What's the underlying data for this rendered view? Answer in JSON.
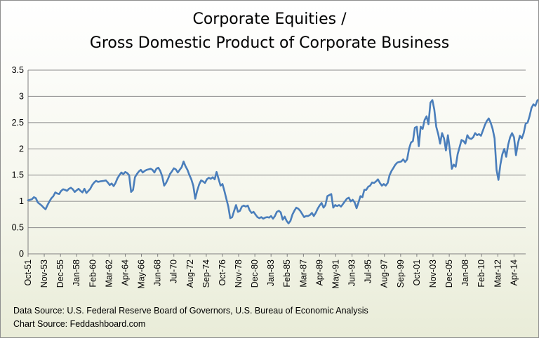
{
  "chart_data": {
    "type": "line",
    "title_line1": "Corporate Equities /",
    "title_line2": "Gross Domestic Product of Corporate Business",
    "xlabel": "",
    "ylabel": "",
    "ylim": [
      0,
      3.5
    ],
    "y_ticks": [
      "0",
      "0.5",
      "1",
      "1.5",
      "2",
      "2.5",
      "3",
      "3.5"
    ],
    "x_tick_labels": [
      "Oct-51",
      "Nov-53",
      "Dec-55",
      "Jan-58",
      "Feb-60",
      "Mar-62",
      "Apr-64",
      "May-66",
      "Jun-68",
      "Jul-70",
      "Aug-72",
      "Sep-74",
      "Oct-76",
      "Nov-78",
      "Dec-80",
      "Jan-83",
      "Feb-85",
      "Mar-87",
      "Apr-89",
      "May-91",
      "Jun-93",
      "Jul-95",
      "Aug-97",
      "Sep-99",
      "Oct-01",
      "Nov-03",
      "Dec-05",
      "Jan-08",
      "Feb-10",
      "Mar-12",
      "Apr-14"
    ],
    "x_tick_years": [
      1951.75,
      1953.83,
      1955.92,
      1958.0,
      1960.08,
      1962.17,
      1964.25,
      1966.33,
      1968.42,
      1970.5,
      1972.58,
      1974.67,
      1976.75,
      1978.83,
      1980.92,
      1983.0,
      1985.08,
      1987.17,
      1989.25,
      1991.33,
      1993.42,
      1995.5,
      1997.58,
      1999.67,
      2001.75,
      2003.83,
      2005.92,
      2008.0,
      2010.08,
      2012.17,
      2014.25
    ],
    "x_range": [
      1951.75,
      2015.75
    ],
    "grid": "horizontal",
    "legend": "none",
    "series": [
      {
        "name": "Corporate Equities / Gross Domestic Product of Corporate Business",
        "color": "#4a7ebb",
        "points": [
          [
            1951.75,
            1.02
          ],
          [
            1952.25,
            1.04
          ],
          [
            1952.5,
            1.08
          ],
          [
            1952.75,
            1.06
          ],
          [
            1953.0,
            0.98
          ],
          [
            1953.25,
            0.95
          ],
          [
            1953.5,
            0.92
          ],
          [
            1953.75,
            0.88
          ],
          [
            1954.0,
            0.85
          ],
          [
            1954.25,
            0.93
          ],
          [
            1954.5,
            1.0
          ],
          [
            1954.75,
            1.06
          ],
          [
            1955.0,
            1.1
          ],
          [
            1955.25,
            1.17
          ],
          [
            1955.5,
            1.15
          ],
          [
            1955.75,
            1.14
          ],
          [
            1956.0,
            1.2
          ],
          [
            1956.25,
            1.23
          ],
          [
            1956.5,
            1.22
          ],
          [
            1956.75,
            1.2
          ],
          [
            1957.0,
            1.24
          ],
          [
            1957.25,
            1.26
          ],
          [
            1957.5,
            1.23
          ],
          [
            1957.75,
            1.18
          ],
          [
            1958.0,
            1.21
          ],
          [
            1958.25,
            1.24
          ],
          [
            1958.5,
            1.2
          ],
          [
            1958.75,
            1.17
          ],
          [
            1959.0,
            1.24
          ],
          [
            1959.25,
            1.16
          ],
          [
            1959.5,
            1.2
          ],
          [
            1959.75,
            1.24
          ],
          [
            1960.0,
            1.31
          ],
          [
            1960.25,
            1.36
          ],
          [
            1960.5,
            1.39
          ],
          [
            1960.75,
            1.37
          ],
          [
            1961.0,
            1.38
          ],
          [
            1961.5,
            1.39
          ],
          [
            1961.75,
            1.4
          ],
          [
            1962.0,
            1.36
          ],
          [
            1962.25,
            1.31
          ],
          [
            1962.5,
            1.34
          ],
          [
            1962.75,
            1.29
          ],
          [
            1963.0,
            1.35
          ],
          [
            1963.25,
            1.44
          ],
          [
            1963.5,
            1.5
          ],
          [
            1963.75,
            1.55
          ],
          [
            1964.0,
            1.52
          ],
          [
            1964.25,
            1.56
          ],
          [
            1964.5,
            1.54
          ],
          [
            1964.75,
            1.5
          ],
          [
            1965.0,
            1.18
          ],
          [
            1965.25,
            1.22
          ],
          [
            1965.5,
            1.46
          ],
          [
            1965.75,
            1.52
          ],
          [
            1966.0,
            1.57
          ],
          [
            1966.25,
            1.6
          ],
          [
            1966.5,
            1.55
          ],
          [
            1966.75,
            1.58
          ],
          [
            1967.0,
            1.6
          ],
          [
            1967.5,
            1.62
          ],
          [
            1967.75,
            1.6
          ],
          [
            1968.0,
            1.55
          ],
          [
            1968.25,
            1.62
          ],
          [
            1968.5,
            1.64
          ],
          [
            1968.75,
            1.58
          ],
          [
            1969.0,
            1.48
          ],
          [
            1969.25,
            1.3
          ],
          [
            1969.5,
            1.35
          ],
          [
            1969.75,
            1.43
          ],
          [
            1970.0,
            1.52
          ],
          [
            1970.25,
            1.57
          ],
          [
            1970.5,
            1.63
          ],
          [
            1970.75,
            1.61
          ],
          [
            1971.0,
            1.55
          ],
          [
            1971.25,
            1.6
          ],
          [
            1971.5,
            1.65
          ],
          [
            1971.75,
            1.76
          ],
          [
            1972.0,
            1.67
          ],
          [
            1972.25,
            1.6
          ],
          [
            1972.5,
            1.5
          ],
          [
            1972.75,
            1.42
          ],
          [
            1973.0,
            1.3
          ],
          [
            1973.25,
            1.05
          ],
          [
            1973.5,
            1.2
          ],
          [
            1973.75,
            1.32
          ],
          [
            1974.0,
            1.4
          ],
          [
            1974.25,
            1.38
          ],
          [
            1974.5,
            1.35
          ],
          [
            1974.75,
            1.42
          ],
          [
            1975.0,
            1.45
          ],
          [
            1975.25,
            1.43
          ],
          [
            1975.5,
            1.46
          ],
          [
            1975.75,
            1.42
          ],
          [
            1976.0,
            1.56
          ],
          [
            1976.25,
            1.43
          ],
          [
            1976.5,
            1.3
          ],
          [
            1976.75,
            1.33
          ],
          [
            1977.0,
            1.2
          ],
          [
            1977.25,
            1.05
          ],
          [
            1977.5,
            0.9
          ],
          [
            1977.75,
            0.68
          ],
          [
            1978.0,
            0.7
          ],
          [
            1978.25,
            0.82
          ],
          [
            1978.5,
            0.93
          ],
          [
            1978.75,
            0.8
          ],
          [
            1979.0,
            0.82
          ],
          [
            1979.25,
            0.9
          ],
          [
            1979.5,
            0.92
          ],
          [
            1979.75,
            0.9
          ],
          [
            1980.0,
            0.92
          ],
          [
            1980.25,
            0.83
          ],
          [
            1980.5,
            0.78
          ],
          [
            1980.75,
            0.8
          ],
          [
            1981.0,
            0.75
          ],
          [
            1981.25,
            0.7
          ],
          [
            1981.5,
            0.68
          ],
          [
            1981.75,
            0.7
          ],
          [
            1982.0,
            0.67
          ],
          [
            1982.25,
            0.69
          ],
          [
            1982.5,
            0.7
          ],
          [
            1982.75,
            0.69
          ],
          [
            1983.0,
            0.72
          ],
          [
            1983.25,
            0.67
          ],
          [
            1983.5,
            0.72
          ],
          [
            1983.75,
            0.8
          ],
          [
            1984.0,
            0.82
          ],
          [
            1984.25,
            0.79
          ],
          [
            1984.5,
            0.65
          ],
          [
            1984.75,
            0.71
          ],
          [
            1985.0,
            0.63
          ],
          [
            1985.25,
            0.58
          ],
          [
            1985.5,
            0.63
          ],
          [
            1985.75,
            0.75
          ],
          [
            1986.0,
            0.82
          ],
          [
            1986.25,
            0.88
          ],
          [
            1986.5,
            0.86
          ],
          [
            1986.75,
            0.82
          ],
          [
            1987.0,
            0.76
          ],
          [
            1987.25,
            0.7
          ],
          [
            1987.5,
            0.72
          ],
          [
            1987.75,
            0.72
          ],
          [
            1988.0,
            0.74
          ],
          [
            1988.25,
            0.78
          ],
          [
            1988.5,
            0.72
          ],
          [
            1988.75,
            0.78
          ],
          [
            1989.0,
            0.86
          ],
          [
            1989.25,
            0.92
          ],
          [
            1989.5,
            0.97
          ],
          [
            1989.75,
            0.88
          ],
          [
            1990.0,
            0.93
          ],
          [
            1990.25,
            1.1
          ],
          [
            1990.5,
            1.12
          ],
          [
            1990.75,
            1.14
          ],
          [
            1991.0,
            0.88
          ],
          [
            1991.25,
            0.93
          ],
          [
            1991.5,
            0.91
          ],
          [
            1991.75,
            0.93
          ],
          [
            1992.0,
            0.9
          ],
          [
            1992.25,
            0.95
          ],
          [
            1992.5,
            1.0
          ],
          [
            1992.75,
            1.05
          ],
          [
            1993.0,
            1.07
          ],
          [
            1993.25,
            1.0
          ],
          [
            1993.5,
            1.03
          ],
          [
            1993.75,
            0.98
          ],
          [
            1994.0,
            0.87
          ],
          [
            1994.25,
            0.98
          ],
          [
            1994.5,
            1.1
          ],
          [
            1994.75,
            1.08
          ],
          [
            1995.0,
            1.22
          ],
          [
            1995.25,
            1.22
          ],
          [
            1995.5,
            1.28
          ],
          [
            1995.75,
            1.3
          ],
          [
            1996.0,
            1.36
          ],
          [
            1996.25,
            1.35
          ],
          [
            1996.5,
            1.38
          ],
          [
            1996.75,
            1.42
          ],
          [
            1997.0,
            1.35
          ],
          [
            1997.25,
            1.3
          ],
          [
            1997.5,
            1.33
          ],
          [
            1997.75,
            1.3
          ],
          [
            1998.0,
            1.35
          ],
          [
            1998.25,
            1.5
          ],
          [
            1998.5,
            1.58
          ],
          [
            1998.75,
            1.64
          ],
          [
            1999.0,
            1.7
          ],
          [
            1999.25,
            1.74
          ],
          [
            1999.5,
            1.75
          ],
          [
            1999.75,
            1.76
          ],
          [
            2000.0,
            1.8
          ],
          [
            2000.25,
            1.75
          ],
          [
            2000.5,
            1.8
          ],
          [
            2000.75,
            2.0
          ],
          [
            2001.0,
            2.12
          ],
          [
            2001.25,
            2.15
          ],
          [
            2001.5,
            2.4
          ],
          [
            2001.75,
            2.42
          ],
          [
            2002.0,
            2.05
          ],
          [
            2002.25,
            2.42
          ],
          [
            2002.5,
            2.38
          ],
          [
            2002.75,
            2.55
          ],
          [
            2003.0,
            2.62
          ],
          [
            2003.25,
            2.47
          ],
          [
            2003.5,
            2.88
          ],
          [
            2003.75,
            2.93
          ],
          [
            2004.0,
            2.75
          ],
          [
            2004.25,
            2.42
          ],
          [
            2004.5,
            2.28
          ],
          [
            2004.75,
            2.1
          ],
          [
            2005.0,
            2.3
          ],
          [
            2005.25,
            2.2
          ],
          [
            2005.5,
            1.97
          ],
          [
            2005.75,
            2.26
          ],
          [
            2006.0,
            1.98
          ],
          [
            2006.25,
            1.62
          ],
          [
            2006.5,
            1.7
          ],
          [
            2006.75,
            1.66
          ],
          [
            2007.0,
            1.9
          ],
          [
            2007.25,
            2.03
          ],
          [
            2007.5,
            2.17
          ],
          [
            2007.75,
            2.15
          ],
          [
            2008.0,
            2.1
          ],
          [
            2008.25,
            2.26
          ],
          [
            2008.5,
            2.2
          ],
          [
            2008.75,
            2.19
          ],
          [
            2009.0,
            2.22
          ],
          [
            2009.25,
            2.3
          ],
          [
            2009.5,
            2.26
          ],
          [
            2009.75,
            2.28
          ],
          [
            2010.0,
            2.25
          ],
          [
            2010.25,
            2.35
          ],
          [
            2010.5,
            2.45
          ],
          [
            2010.75,
            2.53
          ],
          [
            2011.0,
            2.58
          ],
          [
            2011.25,
            2.5
          ],
          [
            2011.5,
            2.38
          ],
          [
            2011.75,
            2.2
          ],
          [
            2012.0,
            1.6
          ],
          [
            2012.25,
            1.41
          ],
          [
            2012.5,
            1.7
          ],
          [
            2012.75,
            1.9
          ],
          [
            2013.0,
            2.0
          ],
          [
            2013.25,
            1.85
          ],
          [
            2013.5,
            2.08
          ],
          [
            2013.75,
            2.22
          ],
          [
            2014.0,
            2.3
          ],
          [
            2014.25,
            2.22
          ],
          [
            2014.5,
            1.88
          ],
          [
            2014.75,
            2.1
          ],
          [
            2015.0,
            2.25
          ],
          [
            2015.25,
            2.2
          ],
          [
            2015.5,
            2.3
          ],
          [
            2015.75,
            2.48
          ],
          [
            2016.0,
            2.5
          ],
          [
            2016.25,
            2.62
          ],
          [
            2016.5,
            2.78
          ],
          [
            2016.75,
            2.85
          ],
          [
            2017.0,
            2.82
          ],
          [
            2017.25,
            2.92
          ],
          [
            2017.5,
            2.95
          ],
          [
            2017.75,
            2.97
          ],
          [
            2018.0,
            2.7
          ],
          [
            2018.25,
            2.78
          ]
        ]
      }
    ]
  },
  "sources": {
    "data_source": "Data Source: U.S. Federal Reserve Board of Governors, U.S. Bureau of Economic Analysis",
    "chart_source": "Chart Source: Feddashboard.com"
  }
}
